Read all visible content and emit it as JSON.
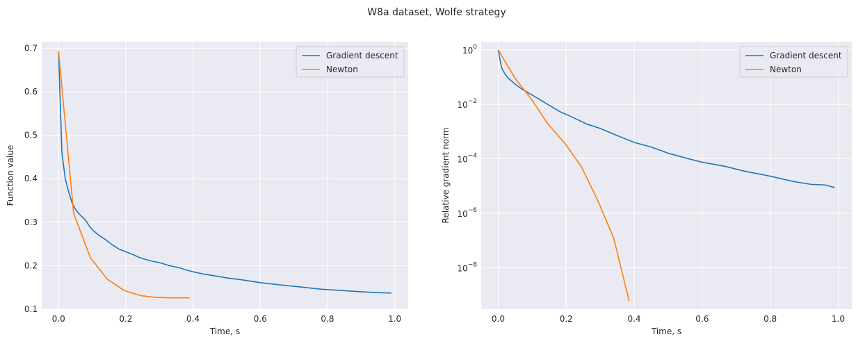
{
  "figure": {
    "suptitle": "W8a dataset, Wolfe strategy"
  },
  "colors": {
    "gradient_descent": "#1f77b4",
    "newton": "#ff7f0e",
    "axes_background": "#eaeaf2",
    "grid": "#ffffff"
  },
  "chart_data": [
    {
      "type": "line",
      "title": "",
      "xlabel": "Time, s",
      "ylabel": "Function value",
      "xlim": [
        -0.05,
        1.04
      ],
      "ylim": [
        0.1,
        0.715
      ],
      "yscale": "linear",
      "xticks": [
        0.0,
        0.2,
        0.4,
        0.6,
        0.8,
        1.0
      ],
      "xtick_labels": [
        "0.0",
        "0.2",
        "0.4",
        "0.6",
        "0.8",
        "1.0"
      ],
      "yticks": [
        0.1,
        0.2,
        0.3,
        0.4,
        0.5,
        0.6,
        0.7
      ],
      "ytick_labels": [
        "0.1",
        "0.2",
        "0.3",
        "0.4",
        "0.5",
        "0.6",
        "0.7"
      ],
      "grid": true,
      "legend": "top-right",
      "series": [
        {
          "name": "Gradient descent",
          "x": [
            0.0,
            0.01,
            0.02,
            0.03,
            0.04,
            0.05,
            0.06,
            0.08,
            0.09,
            0.1,
            0.12,
            0.14,
            0.16,
            0.18,
            0.2,
            0.22,
            0.24,
            0.26,
            0.28,
            0.3,
            0.33,
            0.36,
            0.38,
            0.4,
            0.43,
            0.47,
            0.5,
            0.55,
            0.6,
            0.67,
            0.72,
            0.78,
            0.84,
            0.9,
            0.95,
            0.99
          ],
          "y": [
            0.693,
            0.46,
            0.4,
            0.37,
            0.345,
            0.33,
            0.32,
            0.305,
            0.293,
            0.283,
            0.27,
            0.26,
            0.248,
            0.238,
            0.232,
            0.226,
            0.219,
            0.214,
            0.21,
            0.207,
            0.2,
            0.195,
            0.19,
            0.186,
            0.181,
            0.176,
            0.172,
            0.167,
            0.161,
            0.155,
            0.151,
            0.146,
            0.143,
            0.14,
            0.138,
            0.137
          ]
        },
        {
          "name": "Newton",
          "x": [
            0.0,
            0.045,
            0.095,
            0.145,
            0.195,
            0.245,
            0.29,
            0.335,
            0.39
          ],
          "y": [
            0.693,
            0.32,
            0.218,
            0.169,
            0.143,
            0.131,
            0.127,
            0.126,
            0.126
          ]
        }
      ]
    },
    {
      "type": "line",
      "title": "",
      "xlabel": "Time, s",
      "ylabel": "Relative gradient norm",
      "xlim": [
        -0.05,
        1.04
      ],
      "ylim": [
        3e-10,
        2
      ],
      "yscale": "log",
      "xticks": [
        0.0,
        0.2,
        0.4,
        0.6,
        0.8,
        1.0
      ],
      "xtick_labels": [
        "0.0",
        "0.2",
        "0.4",
        "0.6",
        "0.8",
        "1.0"
      ],
      "yticks": [
        1,
        0.01,
        0.0001,
        1e-06,
        1e-08
      ],
      "ytick_labels": [
        {
          "base": "10",
          "exp": "0"
        },
        {
          "base": "10",
          "exp": "−2"
        },
        {
          "base": "10",
          "exp": "−4"
        },
        {
          "base": "10",
          "exp": "−6"
        },
        {
          "base": "10",
          "exp": "−8"
        }
      ],
      "grid": true,
      "legend": "top-right",
      "series": [
        {
          "name": "Gradient descent",
          "x": [
            0.0,
            0.01,
            0.02,
            0.03,
            0.05,
            0.07,
            0.1,
            0.14,
            0.18,
            0.22,
            0.26,
            0.3,
            0.34,
            0.4,
            0.45,
            0.5,
            0.56,
            0.6,
            0.67,
            0.72,
            0.8,
            0.87,
            0.92,
            0.96,
            0.99
          ],
          "y": [
            1.0,
            0.22,
            0.13,
            0.09,
            0.055,
            0.036,
            0.022,
            0.011,
            0.0055,
            0.0033,
            0.0019,
            0.0013,
            0.0008,
            0.0004,
            0.00027,
            0.00016,
            0.0001,
            7.5e-05,
            5.2e-05,
            3.6e-05,
            2.3e-05,
            1.45e-05,
            1.15e-05,
            1.1e-05,
            8.8e-06
          ]
        },
        {
          "name": "Newton",
          "x": [
            0.0,
            0.05,
            0.1,
            0.145,
            0.2,
            0.245,
            0.29,
            0.34,
            0.385
          ],
          "y": [
            1.0,
            0.09,
            0.014,
            0.002,
            0.00032,
            5e-05,
            3.5e-06,
            1.2e-07,
            6e-10
          ]
        }
      ]
    }
  ]
}
